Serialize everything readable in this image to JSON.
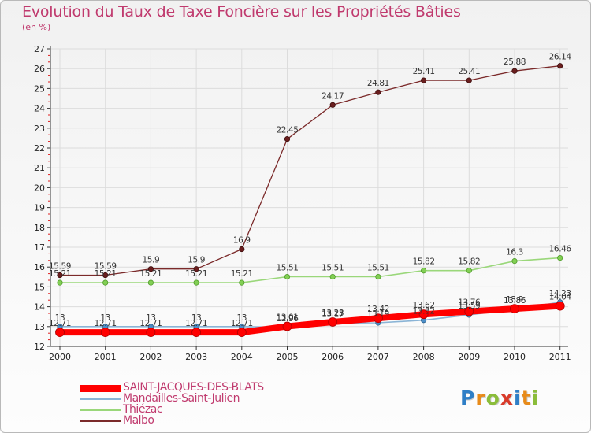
{
  "chart_data": {
    "type": "line",
    "title": "Evolution du Taux de Taxe Foncière sur les Propriétés Bâties",
    "ylabel": "(en %)",
    "xlabel": "",
    "x": [
      "2000",
      "2001",
      "2002",
      "2003",
      "2004",
      "2005",
      "2006",
      "2007",
      "2008",
      "2009",
      "2010",
      "2011"
    ],
    "ylim": [
      12,
      27
    ],
    "yticks": [
      12,
      13,
      14,
      15,
      16,
      17,
      18,
      19,
      20,
      21,
      22,
      23,
      24,
      25,
      26,
      27
    ],
    "series": [
      {
        "name": "Malbo",
        "color": "#7b2a2a",
        "values": [
          15.59,
          15.59,
          15.9,
          15.9,
          16.9,
          22.45,
          24.17,
          24.81,
          25.41,
          25.41,
          25.88,
          26.14
        ],
        "labels": [
          "15.59",
          "15.59",
          "15.9",
          "15.9",
          "16.9",
          "22.45",
          "24.17",
          "24.81",
          "25.41",
          "25.41",
          "25.88",
          "26.14"
        ]
      },
      {
        "name": "Thiézac",
        "color": "#9ad77a",
        "values": [
          15.21,
          15.21,
          15.21,
          15.21,
          15.21,
          15.51,
          15.51,
          15.51,
          15.82,
          15.82,
          16.3,
          16.46
        ],
        "labels": [
          "15.21",
          "15.21",
          "15.21",
          "15.21",
          "15.21",
          "15.51",
          "15.51",
          "15.51",
          "15.82",
          "15.82",
          "16.3",
          "16.46"
        ]
      },
      {
        "name": "Mandailles-Saint-Julien",
        "color": "#8ab4d6",
        "values": [
          13,
          13,
          13,
          13,
          13,
          12.96,
          13.17,
          13.19,
          13.32,
          13.59,
          13.86,
          14.23
        ],
        "labels": [
          "13",
          "13",
          "13",
          "13",
          "13",
          "12.96",
          "13.17",
          "13.19",
          "13.32",
          "13.59",
          "13.86",
          "14.23"
        ]
      },
      {
        "name": "SAINT-JACQUES-DES-BLATS",
        "color": "#ff0000",
        "values": [
          12.71,
          12.71,
          12.71,
          12.71,
          12.71,
          13.01,
          13.23,
          13.42,
          13.62,
          13.76,
          13.9,
          14.04
        ],
        "labels": [
          "12.71",
          "12.71",
          "12.71",
          "12.71",
          "12.71",
          "13.01",
          "13.23",
          "13.42",
          "13.62",
          "13.76",
          "13.9",
          "14.04"
        ]
      }
    ],
    "legend": [
      "SAINT-JACQUES-DES-BLATS",
      "Mandailles-Saint-Julien",
      "Thiézac",
      "Malbo"
    ]
  },
  "logo": [
    "P",
    "r",
    "o",
    "x",
    "i",
    "t",
    "i"
  ],
  "logo_colors": [
    "#2f7fc7",
    "#e88b1a",
    "#8bbd3a",
    "#d93a2a",
    "#2f7fc7",
    "#e88b1a",
    "#8bbd3a"
  ]
}
